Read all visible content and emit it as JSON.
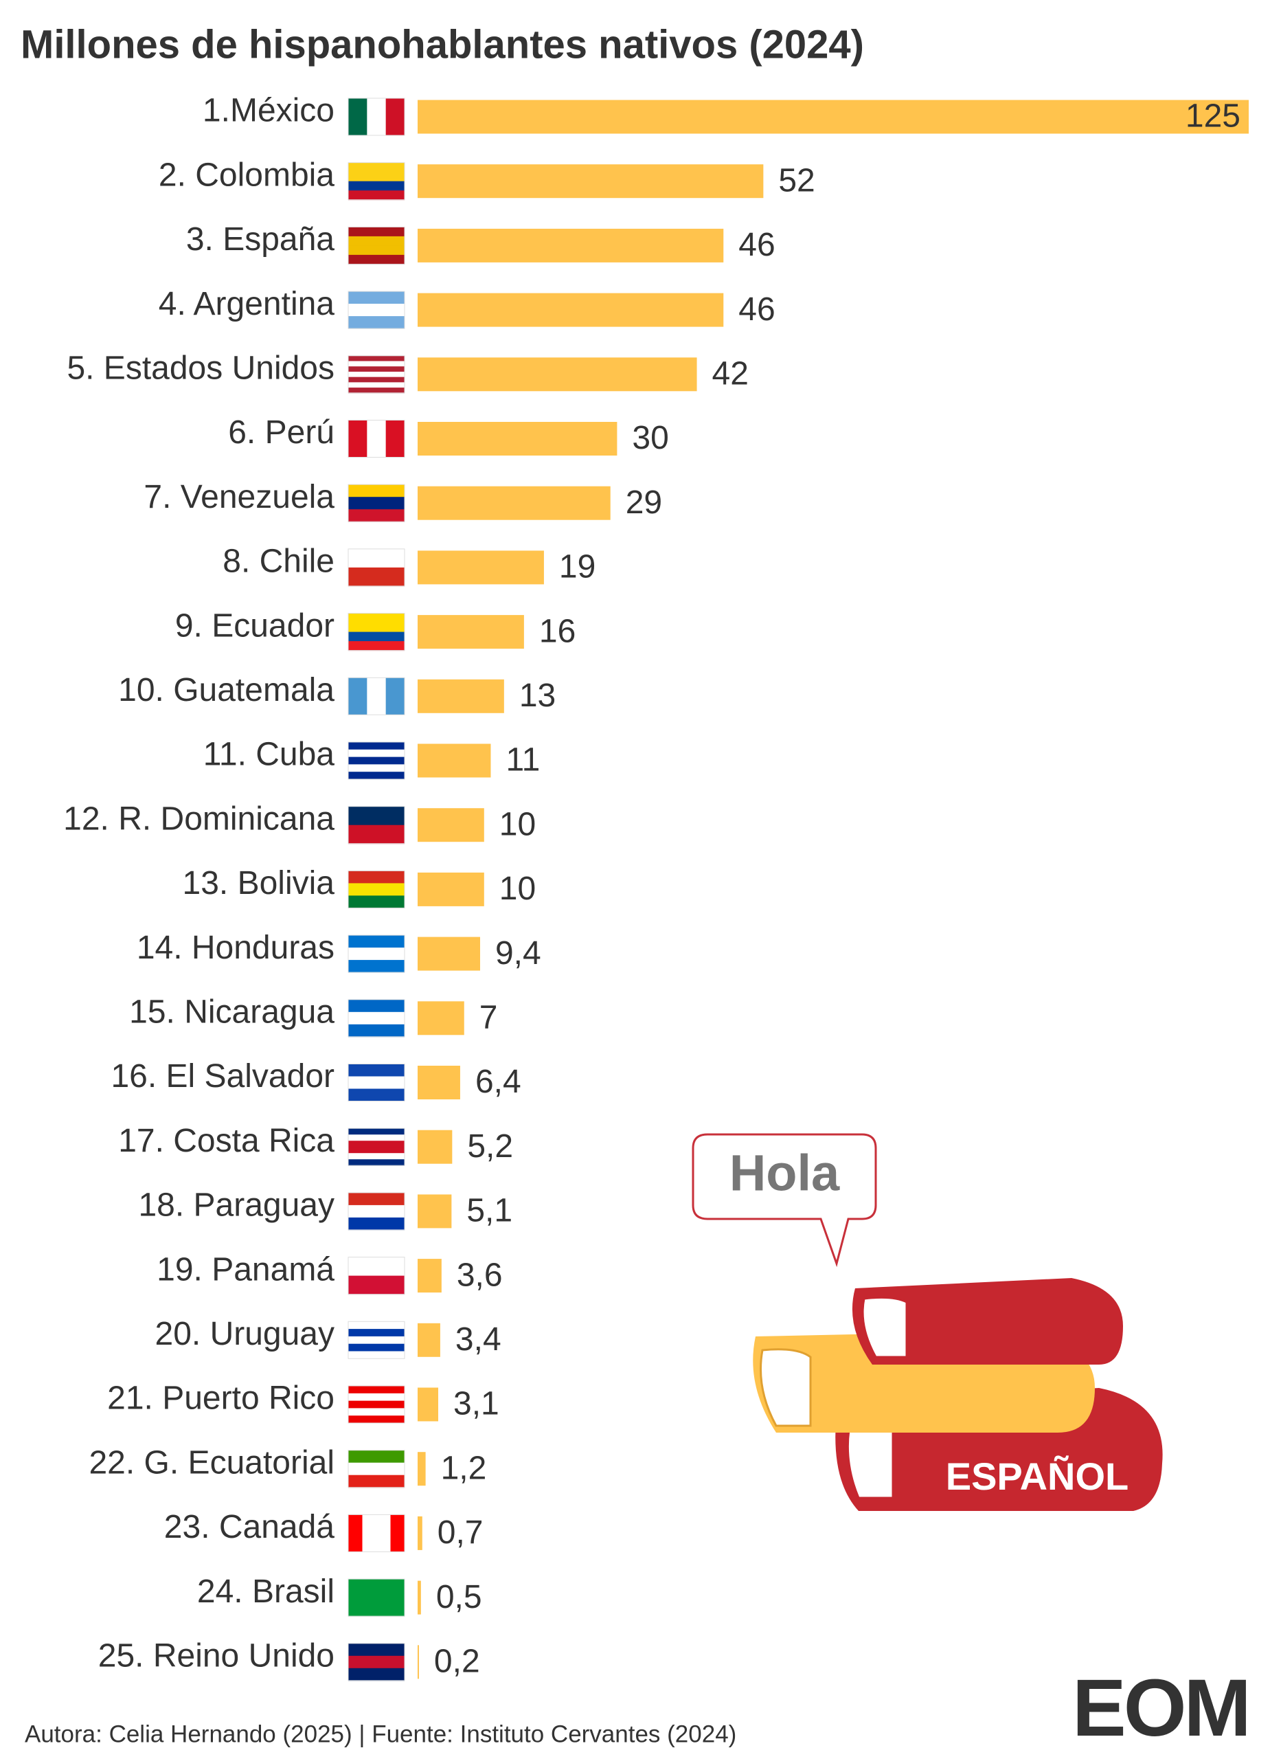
{
  "chart_data": {
    "type": "bar",
    "orientation": "horizontal",
    "title": "Millones de hispanohablantes nativos (2024)",
    "categories": [
      "1.México",
      "2. Colombia",
      "3. España",
      "4. Argentina",
      "5. Estados Unidos",
      "6. Perú",
      "7. Venezuela",
      "8. Chile",
      "9. Ecuador",
      "10. Guatemala",
      "11. Cuba",
      "12. R. Dominicana",
      "13. Bolivia",
      "14. Honduras",
      "15. Nicaragua",
      "16. El Salvador",
      "17. Costa Rica",
      "18. Paraguay",
      "19. Panamá",
      "20. Uruguay",
      "21. Puerto Rico",
      "22. G. Ecuatorial",
      "23. Canadá",
      "24. Brasil",
      "25. Reino Unido"
    ],
    "values": [
      125,
      52,
      46,
      46,
      42,
      30,
      29,
      19,
      16,
      13,
      11,
      10,
      10,
      9.4,
      7,
      6.4,
      5.2,
      5.1,
      3.6,
      3.4,
      3.1,
      1.2,
      0.7,
      0.5,
      0.2
    ],
    "value_labels": [
      "125",
      "52",
      "46",
      "46",
      "42",
      "30",
      "29",
      "19",
      "16",
      "13",
      "11",
      "10",
      "10",
      "9,4",
      "7",
      "6,4",
      "5,2",
      "5,1",
      "3,6",
      "3,4",
      "3,1",
      "1,2",
      "0,7",
      "0,5",
      "0,2"
    ],
    "color": "#ffc34d",
    "xlim": [
      0,
      125
    ]
  },
  "illustration": {
    "speech": "Hola",
    "book_label": "ESPAÑOL"
  },
  "footer": "Autora: Celia Hernando (2025) | Fuente: Instituto Cervantes (2024)",
  "logo": "EOM"
}
